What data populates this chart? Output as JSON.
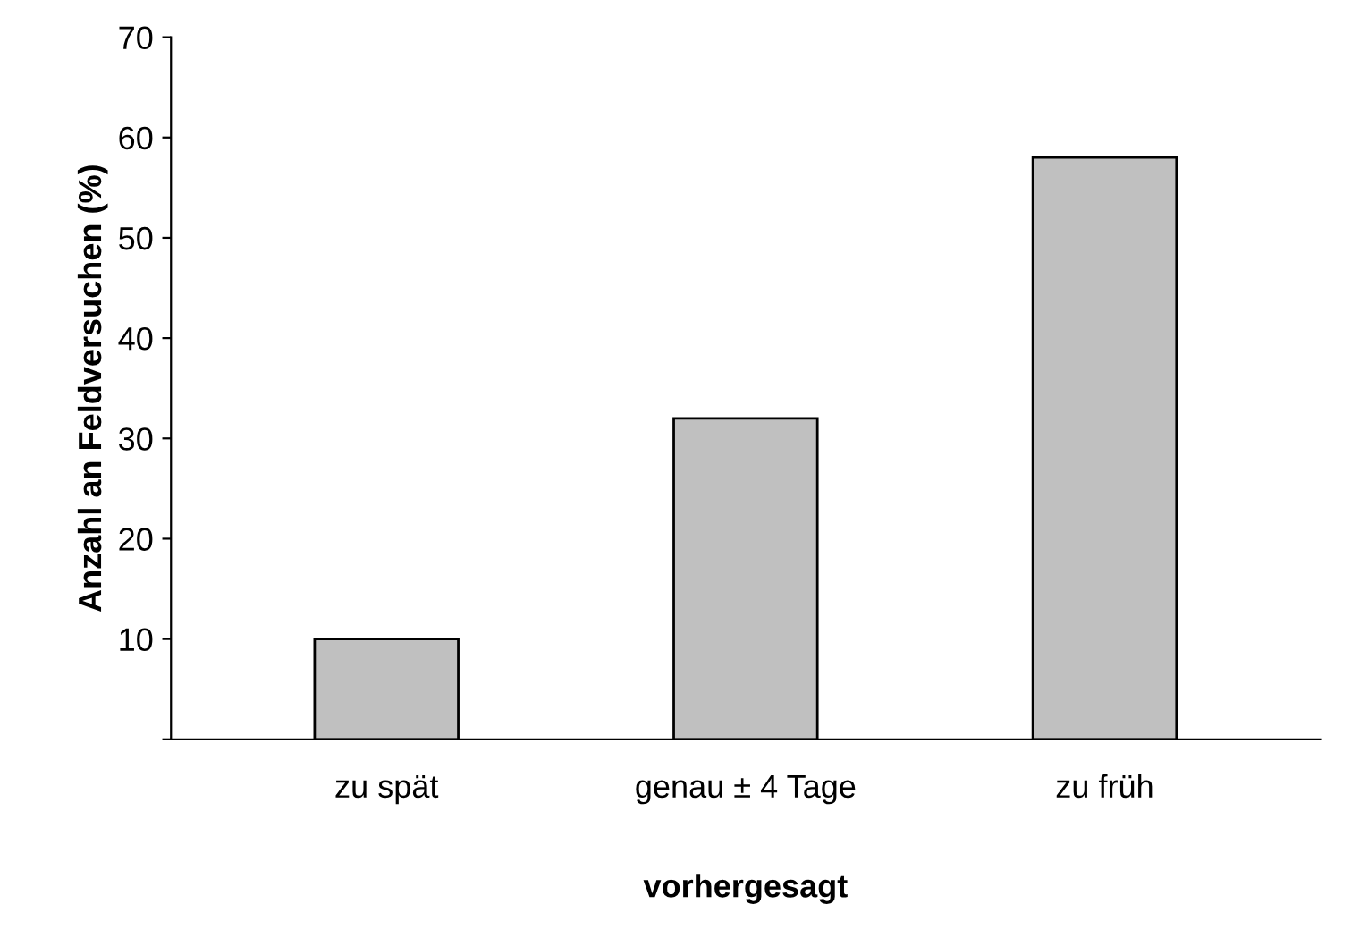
{
  "chart_data": {
    "type": "bar",
    "xlabel": "vorhergesagt",
    "ylabel": "Anzahl an Feldversuchen (%)",
    "categories": [
      "zu spät",
      "genau ± 4 Tage",
      "zu früh"
    ],
    "values": [
      10,
      32,
      58
    ],
    "color": "#c0c0c0",
    "ylim": [
      0,
      70
    ],
    "yticks": [
      {
        "value": 0,
        "label": null
      },
      10,
      20,
      30,
      40,
      50,
      60,
      70
    ],
    "grid": false
  }
}
